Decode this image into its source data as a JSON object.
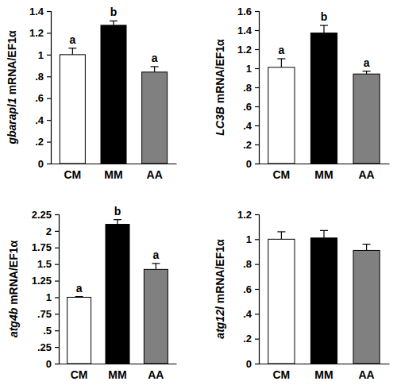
{
  "chart_data": [
    {
      "type": "bar",
      "y_label": "gbarapl1 mRNA/EF1α",
      "categories": [
        "CM",
        "MM",
        "AA"
      ],
      "values": [
        1.0,
        1.27,
        0.84
      ],
      "errors": [
        0.06,
        0.04,
        0.05
      ],
      "colors": [
        "#ffffff",
        "#000000",
        "#808080"
      ],
      "annotations": [
        "a",
        "b",
        "a"
      ],
      "ylim": [
        0,
        1.4
      ],
      "yticks": [
        0,
        {
          "value": 0.2,
          "label": ".2"
        },
        {
          "value": 0.4,
          "label": ".4"
        },
        {
          "value": 0.6,
          "label": ".6"
        },
        {
          "value": 0.8,
          "label": ".8"
        },
        1,
        1.2,
        1.4
      ]
    },
    {
      "type": "bar",
      "y_label": "LC3B mRNA/EF1α",
      "categories": [
        "CM",
        "MM",
        "AA"
      ],
      "values": [
        1.01,
        1.37,
        0.94
      ],
      "errors": [
        0.09,
        0.08,
        0.03
      ],
      "colors": [
        "#ffffff",
        "#000000",
        "#808080"
      ],
      "annotations": [
        "a",
        "b",
        "a"
      ],
      "ylim": [
        0,
        1.6
      ],
      "yticks": [
        0,
        {
          "value": 0.2,
          "label": ".2"
        },
        {
          "value": 0.4,
          "label": ".4"
        },
        {
          "value": 0.6,
          "label": ".6"
        },
        {
          "value": 0.8,
          "label": ".8"
        },
        1,
        1.2,
        1.4,
        1.6
      ]
    },
    {
      "type": "bar",
      "y_label": "atg4b mRNA/EF1α",
      "categories": [
        "CM",
        "MM",
        "AA"
      ],
      "values": [
        1.0,
        2.1,
        1.42
      ],
      "errors": [
        0.01,
        0.07,
        0.09
      ],
      "colors": [
        "#ffffff",
        "#000000",
        "#808080"
      ],
      "annotations": [
        "a",
        "b",
        "a"
      ],
      "ylim": [
        0,
        2.25
      ],
      "yticks": [
        0,
        {
          "value": 0.25,
          "label": ".25"
        },
        {
          "value": 0.5,
          "label": ".5"
        },
        {
          "value": 0.75,
          "label": ".75"
        },
        1,
        1.25,
        1.5,
        1.75,
        2,
        2.25
      ]
    },
    {
      "type": "bar",
      "y_label": "atg12l mRNA/EF1α",
      "categories": [
        "CM",
        "MM",
        "AA"
      ],
      "values": [
        1.0,
        1.01,
        0.91
      ],
      "errors": [
        0.06,
        0.06,
        0.05
      ],
      "colors": [
        "#ffffff",
        "#000000",
        "#808080"
      ],
      "ylim": [
        0,
        1.2
      ],
      "yticks": [
        0,
        {
          "value": 0.2,
          "label": ".2"
        },
        {
          "value": 0.4,
          "label": ".4"
        },
        {
          "value": 0.6,
          "label": ".6"
        },
        {
          "value": 0.8,
          "label": ".8"
        },
        1,
        1.2
      ]
    }
  ]
}
